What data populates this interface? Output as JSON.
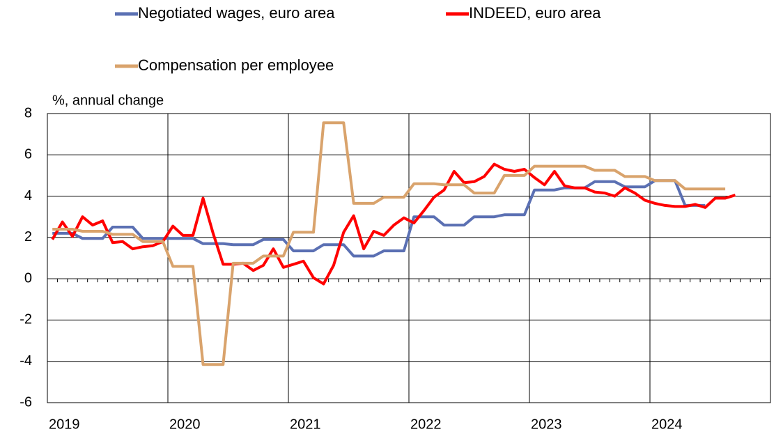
{
  "chart_data": {
    "type": "line",
    "y_label": "%, annual change",
    "categories": [
      "2019",
      null,
      null,
      null,
      null,
      null,
      null,
      null,
      null,
      null,
      null,
      null,
      "2020",
      null,
      null,
      null,
      null,
      null,
      null,
      null,
      null,
      null,
      null,
      null,
      "2021",
      null,
      null,
      null,
      null,
      null,
      null,
      null,
      null,
      null,
      null,
      null,
      "2022",
      null,
      null,
      null,
      null,
      null,
      null,
      null,
      null,
      null,
      null,
      null,
      "2023",
      null,
      null,
      null,
      null,
      null,
      null,
      null,
      null,
      null,
      null,
      null,
      "2024",
      null,
      null,
      null,
      null,
      null,
      null,
      null,
      null,
      null,
      null,
      null
    ],
    "ylim": [
      -6,
      8
    ],
    "yticks": [
      -6,
      -4,
      -2,
      0,
      2,
      4,
      6,
      8
    ],
    "grid": true,
    "legend": "top",
    "series": [
      {
        "name": "Negotiated wages, euro area",
        "color": "#5b70b3",
        "values": [
          2.2,
          2.2,
          2.2,
          1.95,
          1.95,
          1.95,
          2.5,
          2.5,
          2.5,
          1.95,
          1.95,
          1.95,
          1.95,
          1.95,
          1.95,
          1.7,
          1.7,
          1.7,
          1.65,
          1.65,
          1.65,
          1.9,
          1.9,
          1.9,
          1.35,
          1.35,
          1.35,
          1.65,
          1.65,
          1.65,
          1.1,
          1.1,
          1.1,
          1.35,
          1.35,
          1.35,
          3.0,
          3.0,
          3.0,
          2.6,
          2.6,
          2.6,
          3.0,
          3.0,
          3.0,
          3.1,
          3.1,
          3.1,
          4.3,
          4.3,
          4.3,
          4.4,
          4.4,
          4.4,
          4.7,
          4.7,
          4.7,
          4.45,
          4.45,
          4.45,
          4.75,
          4.75,
          4.75,
          3.55,
          3.55,
          3.55,
          null,
          null,
          null,
          null,
          null,
          null
        ]
      },
      {
        "name": "INDEED, euro area",
        "color": "#ff0000",
        "values": [
          1.9,
          2.75,
          2.05,
          3.0,
          2.6,
          2.8,
          1.75,
          1.8,
          1.45,
          1.55,
          1.6,
          1.8,
          2.55,
          2.1,
          2.1,
          3.9,
          2.2,
          0.7,
          0.7,
          0.75,
          0.4,
          0.65,
          1.45,
          0.55,
          0.7,
          0.85,
          0.05,
          -0.25,
          0.65,
          2.25,
          3.05,
          1.45,
          2.3,
          2.1,
          2.6,
          2.95,
          2.7,
          3.3,
          3.95,
          4.3,
          5.2,
          4.65,
          4.7,
          4.95,
          5.55,
          5.3,
          5.2,
          5.3,
          4.9,
          4.55,
          5.2,
          4.5,
          4.4,
          4.4,
          4.2,
          4.15,
          4.0,
          4.4,
          4.15,
          3.8,
          3.65,
          3.55,
          3.5,
          3.5,
          3.6,
          3.45,
          3.9,
          3.9,
          4.05,
          null,
          null,
          null
        ]
      },
      {
        "name": "Compensation per employee",
        "color": "#d9a36c",
        "values": [
          2.4,
          2.4,
          2.4,
          2.3,
          2.3,
          2.3,
          2.15,
          2.15,
          2.15,
          1.8,
          1.8,
          1.8,
          0.6,
          0.6,
          0.6,
          -4.15,
          -4.15,
          -4.15,
          0.75,
          0.75,
          0.75,
          1.1,
          1.1,
          1.1,
          2.25,
          2.25,
          2.25,
          7.55,
          7.55,
          7.55,
          3.65,
          3.65,
          3.65,
          3.95,
          3.95,
          3.95,
          4.6,
          4.6,
          4.6,
          4.55,
          4.55,
          4.55,
          4.15,
          4.15,
          4.15,
          5.0,
          5.0,
          5.0,
          5.45,
          5.45,
          5.45,
          5.45,
          5.45,
          5.45,
          5.25,
          5.25,
          5.25,
          4.95,
          4.95,
          4.95,
          4.75,
          4.75,
          4.75,
          4.35,
          4.35,
          4.35,
          4.35,
          4.35,
          null,
          null,
          null,
          null
        ]
      }
    ]
  }
}
